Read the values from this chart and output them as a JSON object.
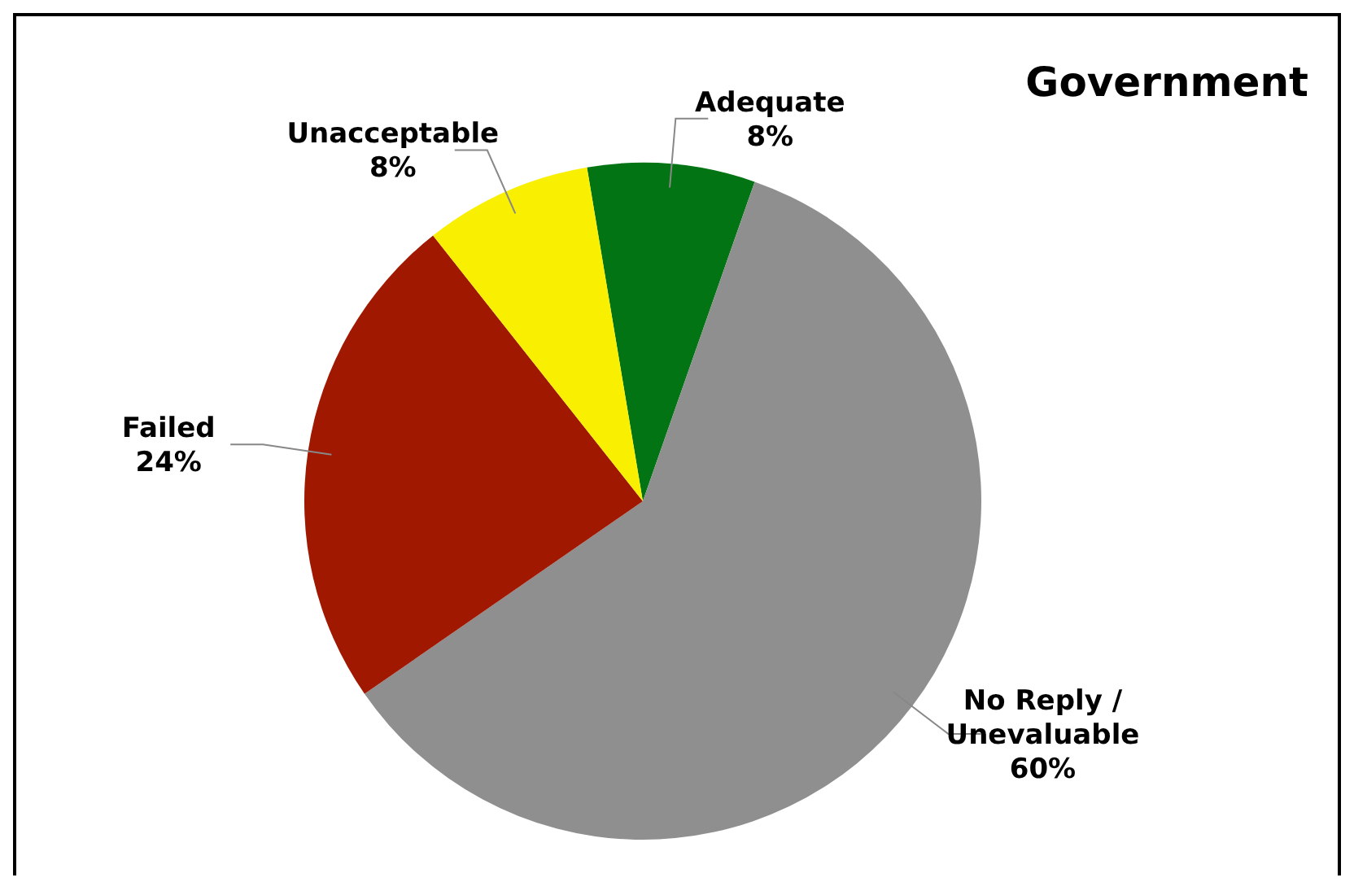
{
  "chart_data": {
    "type": "pie",
    "title": "Government",
    "categories": [
      "Adequate",
      "No Reply / Unevaluable",
      "Failed",
      "Unacceptable"
    ],
    "values": [
      8,
      60,
      24,
      8
    ],
    "colors": [
      "#037413",
      "#8f8f8f",
      "#a01800",
      "#f9ef00"
    ],
    "value_labels": [
      "8%",
      "60%",
      "24%",
      "8%"
    ],
    "legend": false
  }
}
